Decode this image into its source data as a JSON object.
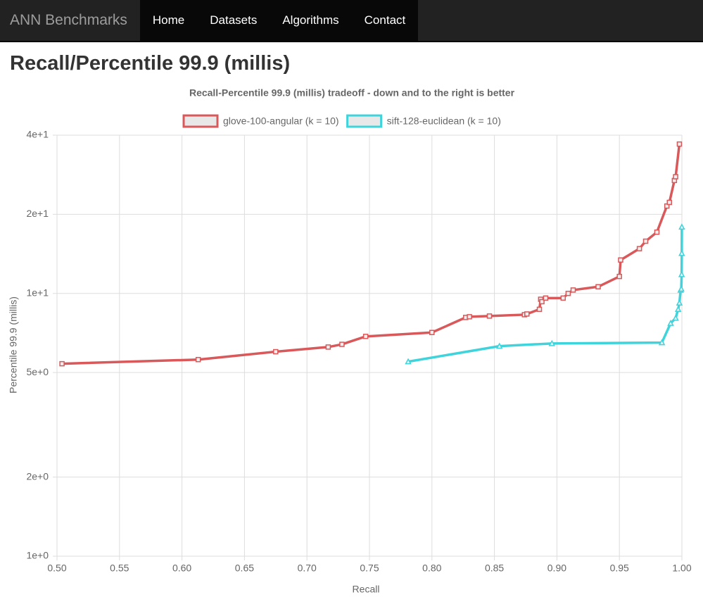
{
  "nav": {
    "brand": "ANN Benchmarks",
    "items": [
      "Home",
      "Datasets",
      "Algorithms",
      "Contact"
    ]
  },
  "heading": "Recall/Percentile 99.9 (millis)",
  "chart_data": {
    "type": "line",
    "title": "Recall-Percentile 99.9 (millis) tradeoff - down and to the right is better",
    "xlabel": "Recall",
    "ylabel": "Percentile 99.9 (millis)",
    "log_y": true,
    "grid": true,
    "legend": "top",
    "xlim": [
      0.5,
      1.0
    ],
    "ylim": [
      1,
      40
    ],
    "xticks": [
      {
        "value": 0.5,
        "label": "0.50"
      },
      {
        "value": 0.55,
        "label": "0.55"
      },
      {
        "value": 0.6,
        "label": "0.60"
      },
      {
        "value": 0.65,
        "label": "0.65"
      },
      {
        "value": 0.7,
        "label": "0.70"
      },
      {
        "value": 0.75,
        "label": "0.75"
      },
      {
        "value": 0.8,
        "label": "0.80"
      },
      {
        "value": 0.85,
        "label": "0.85"
      },
      {
        "value": 0.9,
        "label": "0.90"
      },
      {
        "value": 0.95,
        "label": "0.95"
      },
      {
        "value": 1.0,
        "label": "1.00"
      }
    ],
    "yticks": [
      {
        "value": 1,
        "label": "1e+0"
      },
      {
        "value": 2,
        "label": "2e+0"
      },
      {
        "value": 5,
        "label": "5e+0"
      },
      {
        "value": 10,
        "label": "1e+1"
      },
      {
        "value": 20,
        "label": "2e+1"
      },
      {
        "value": 40,
        "label": "4e+1"
      }
    ],
    "series": [
      {
        "name": "glove-100-angular (k = 10)",
        "color": "#d9595b",
        "marker": "square",
        "x": [
          0.504,
          0.613,
          0.675,
          0.717,
          0.728,
          0.747,
          0.8,
          0.827,
          0.83,
          0.846,
          0.874,
          0.876,
          0.886,
          0.887,
          0.888,
          0.891,
          0.905,
          0.909,
          0.913,
          0.933,
          0.95,
          0.951,
          0.966,
          0.971,
          0.98,
          0.988,
          0.99,
          0.994,
          0.995,
          0.998
        ],
        "values": [
          5.4,
          5.6,
          6.0,
          6.25,
          6.4,
          6.86,
          7.1,
          8.1,
          8.15,
          8.2,
          8.3,
          8.35,
          8.7,
          9.5,
          9.3,
          9.6,
          9.6,
          10.0,
          10.3,
          10.6,
          11.6,
          13.4,
          14.8,
          15.8,
          17.1,
          21.5,
          22.2,
          26.9,
          27.8,
          37.0
        ]
      },
      {
        "name": "sift-128-euclidean (k = 10)",
        "color": "#3fd4dc",
        "marker": "triangle",
        "x": [
          0.781,
          0.854,
          0.896,
          0.984,
          0.991,
          0.995,
          0.997,
          0.998,
          0.999,
          0.9995,
          0.9998,
          0.9999,
          0.99995
        ],
        "values": [
          5.5,
          6.3,
          6.45,
          6.5,
          7.7,
          8.05,
          8.7,
          9.2,
          10.3,
          10.4,
          11.8,
          14.2,
          17.9
        ]
      }
    ]
  }
}
